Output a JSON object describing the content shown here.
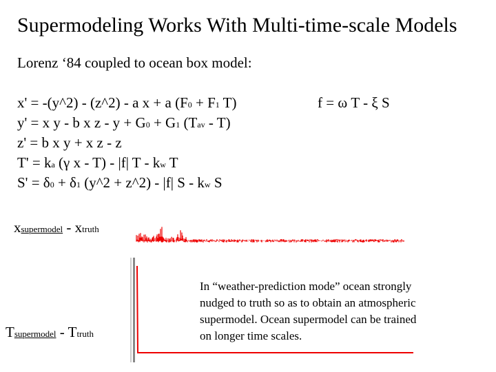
{
  "title": "Supermodeling Works With Multi-time-scale Models",
  "subtitle": "Lorenz ‘84 coupled to ocean box model:",
  "equations": {
    "x": {
      "lhs": "x' = -(y^2) - (z^2) - a x + a (F",
      "s1": "0",
      "m1": " + F",
      "s2": "1",
      "rhs": " T)"
    },
    "y": {
      "lhs": "y' = x y - b x z - y + G",
      "s1": "0",
      "m1": " + G",
      "s2": "1",
      "m2": " (T",
      "s3": "av",
      "rhs": " - T)"
    },
    "z": {
      "text": "z' = b x y + x z - z"
    },
    "T": {
      "lhs": "T' = k",
      "s1": "a",
      "m1": " (γ x - T) - |f| T - k",
      "s2": "w",
      "rhs": " T"
    },
    "S": {
      "lhs": "S' = δ",
      "s1": "0",
      "m1": " + δ",
      "s2": "1",
      "m2": " (y^2 + z^2) - |f| S - k",
      "s3": "w",
      "rhs": " S"
    },
    "f": {
      "text": "f = ω T - ξ S"
    }
  },
  "plot_labels": {
    "x": {
      "main1": "x",
      "sub1": "supermodel",
      "mid": " - x",
      "sub2": "truth"
    },
    "T": {
      "main1": "T",
      "sub1": "supermodel",
      "mid": " - T",
      "sub2": "truth"
    }
  },
  "note": {
    "lines": [
      "In “weather-prediction mode” ocean strongly",
      "nudged to truth so as to obtain an atmospheric",
      "supermodel. Ocean supermodel can be trained",
      "on longer time scales."
    ]
  },
  "colors": {
    "trace": "#ee0000",
    "axis": "#888888"
  }
}
